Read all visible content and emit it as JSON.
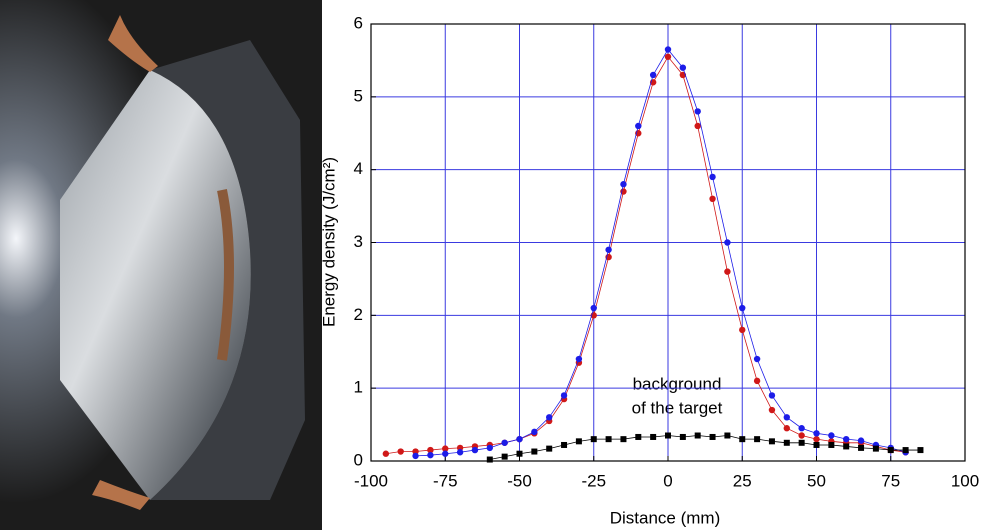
{
  "chart_data": {
    "type": "scatter",
    "xlabel": "Distance (mm)",
    "ylabel": "Energy density (J/cm²)",
    "annotation": [
      "background",
      "of the target"
    ],
    "xlim": [
      -100,
      100
    ],
    "xticks": [
      -100,
      -75,
      -50,
      -25,
      0,
      25,
      50,
      75,
      100
    ],
    "ylim": [
      0,
      6
    ],
    "yticks": [
      0,
      1,
      2,
      3,
      4,
      5,
      6
    ],
    "grid": true,
    "grid_color": "#3a3ae0",
    "series": [
      {
        "color": "#d01818",
        "marker": "circle",
        "x": [
          -95,
          -90,
          -85,
          -80,
          -75,
          -70,
          -65,
          -60,
          -55,
          -50,
          -45,
          -40,
          -35,
          -30,
          -25,
          -20,
          -15,
          -10,
          -5,
          0,
          5,
          10,
          15,
          20,
          25,
          30,
          35,
          40,
          45,
          50,
          55,
          60,
          65,
          70,
          75,
          80
        ],
        "values": [
          0.1,
          0.13,
          0.13,
          0.15,
          0.17,
          0.18,
          0.2,
          0.22,
          0.25,
          0.3,
          0.38,
          0.55,
          0.85,
          1.35,
          2.0,
          2.8,
          3.7,
          4.5,
          5.2,
          5.55,
          5.3,
          4.6,
          3.6,
          2.6,
          1.8,
          1.1,
          0.7,
          0.45,
          0.35,
          0.3,
          0.27,
          0.25,
          0.25,
          0.2,
          0.15,
          0.12
        ]
      },
      {
        "color": "#1c1ce8",
        "marker": "circle",
        "x": [
          -85,
          -80,
          -75,
          -70,
          -65,
          -60,
          -55,
          -50,
          -45,
          -40,
          -35,
          -30,
          -25,
          -20,
          -15,
          -10,
          -5,
          0,
          5,
          10,
          15,
          20,
          25,
          30,
          35,
          40,
          45,
          50,
          55,
          60,
          65,
          70,
          75,
          80
        ],
        "values": [
          0.07,
          0.08,
          0.1,
          0.12,
          0.15,
          0.18,
          0.25,
          0.3,
          0.4,
          0.6,
          0.9,
          1.4,
          2.1,
          2.9,
          3.8,
          4.6,
          5.3,
          5.65,
          5.4,
          4.8,
          3.9,
          3.0,
          2.1,
          1.4,
          0.9,
          0.6,
          0.45,
          0.38,
          0.35,
          0.3,
          0.28,
          0.22,
          0.18,
          0.12
        ]
      },
      {
        "color": "#000000",
        "marker": "square",
        "x": [
          -60,
          -55,
          -50,
          -45,
          -40,
          -35,
          -30,
          -25,
          -20,
          -15,
          -10,
          -5,
          0,
          5,
          10,
          15,
          20,
          25,
          30,
          35,
          40,
          45,
          50,
          55,
          60,
          65,
          70,
          75,
          80,
          85
        ],
        "values": [
          0.02,
          0.06,
          0.1,
          0.13,
          0.17,
          0.22,
          0.27,
          0.3,
          0.3,
          0.3,
          0.33,
          0.33,
          0.35,
          0.33,
          0.35,
          0.33,
          0.35,
          0.3,
          0.3,
          0.27,
          0.25,
          0.25,
          0.22,
          0.22,
          0.2,
          0.18,
          0.17,
          0.15,
          0.15,
          0.15
        ]
      }
    ]
  }
}
